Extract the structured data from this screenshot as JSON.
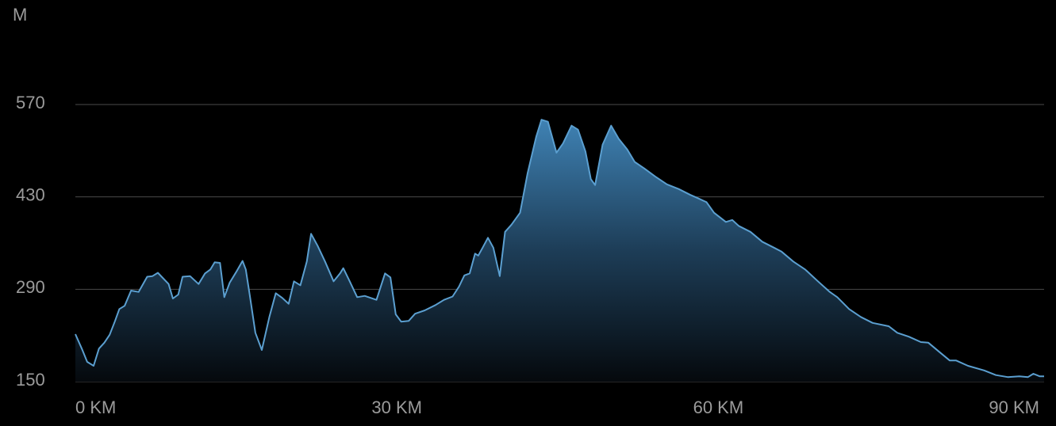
{
  "chart_data": {
    "type": "area",
    "y_label": "M",
    "color": "#5b9fd0",
    "x": [
      0,
      0.6,
      1.1,
      1.7,
      2.2,
      2.7,
      3.2,
      3.7,
      4.1,
      4.6,
      5.2,
      5.9,
      6.7,
      7.2,
      7.7,
      8.7,
      9.1,
      9.6,
      10.0,
      10.7,
      11.5,
      12.1,
      12.6,
      13.0,
      13.5,
      13.9,
      14.4,
      15.0,
      15.6,
      15.9,
      16.3,
      16.8,
      17.4,
      18.1,
      18.7,
      19.3,
      19.9,
      20.4,
      21.0,
      21.6,
      22.0,
      22.6,
      23.3,
      24.1,
      24.7,
      25.0,
      25.6,
      26.3,
      27.0,
      28.1,
      28.9,
      29.4,
      29.9,
      30.4,
      31.1,
      31.7,
      32.6,
      33.6,
      34.4,
      35.2,
      35.8,
      36.3,
      36.8,
      37.3,
      37.6,
      38.0,
      38.5,
      39.0,
      39.6,
      40.1,
      40.7,
      41.5,
      42.2,
      43.0,
      43.5,
      44.1,
      44.9,
      45.5,
      46.3,
      46.9,
      47.6,
      48.1,
      48.5,
      49.2,
      50.0,
      50.7,
      51.5,
      52.2,
      53.1,
      54.1,
      55.2,
      56.3,
      57.4,
      58.1,
      58.9,
      59.6,
      60.7,
      61.3,
      61.9,
      63.0,
      64.1,
      65.2,
      65.9,
      67.0,
      68.1,
      69.3,
      70.4,
      71.1,
      72.2,
      73.3,
      74.4,
      75.9,
      76.7,
      77.8,
      78.9,
      79.6,
      80.7,
      81.6,
      82.2,
      83.3,
      84.8,
      85.9,
      87.0,
      88.1,
      88.9,
      89.4,
      90.0,
      90.4
    ],
    "values": [
      222,
      200,
      180,
      174,
      200,
      209,
      221,
      242,
      260,
      265,
      288,
      286,
      309,
      310,
      315,
      298,
      276,
      282,
      309,
      310,
      298,
      314,
      320,
      331,
      330,
      278,
      300,
      316,
      333,
      320,
      278,
      224,
      198,
      248,
      284,
      277,
      268,
      302,
      296,
      332,
      374,
      356,
      332,
      302,
      314,
      322,
      302,
      278,
      280,
      274,
      314,
      308,
      252,
      241,
      242,
      253,
      258,
      266,
      274,
      279,
      294,
      311,
      314,
      344,
      341,
      353,
      368,
      353,
      310,
      377,
      388,
      406,
      466,
      521,
      547,
      544,
      497,
      511,
      538,
      532,
      499,
      457,
      448,
      509,
      538,
      518,
      502,
      483,
      473,
      461,
      449,
      442,
      433,
      428,
      422,
      406,
      392,
      395,
      386,
      377,
      362,
      353,
      347,
      332,
      320,
      302,
      286,
      278,
      260,
      248,
      239,
      234,
      224,
      218,
      210,
      209,
      194,
      182,
      182,
      174,
      167,
      160,
      157,
      158,
      157,
      162,
      158,
      158
    ],
    "xlim": [
      0,
      90.4
    ],
    "xticks": [
      {
        "value": 0,
        "label": "0 KM"
      },
      {
        "value": 30,
        "label": "30 KM"
      },
      {
        "value": 60,
        "label": "60 KM"
      },
      {
        "value": 90,
        "label": "90 KM"
      }
    ],
    "ylim": [
      150,
      570
    ],
    "yticks": [
      150,
      290,
      430,
      570
    ],
    "grid": true
  }
}
